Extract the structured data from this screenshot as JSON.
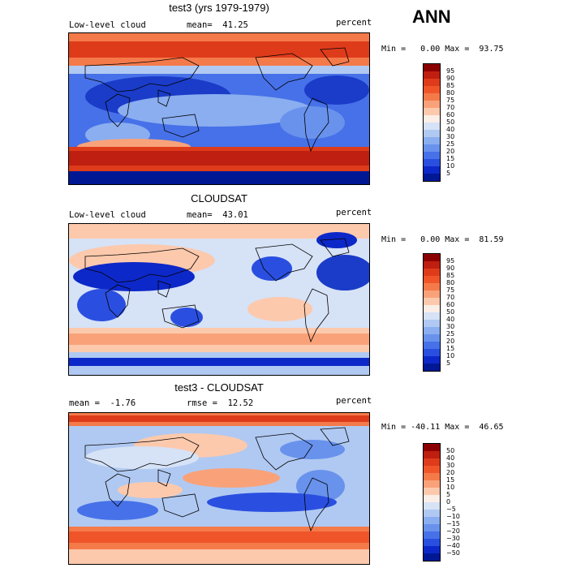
{
  "season": "ANN",
  "panels": [
    {
      "title": "test3 (yrs 1979-1979)",
      "left_label": "Low-level cloud",
      "stat_label": "mean=  41.25",
      "units": "percent",
      "minmax": "Min =   0.00 Max =  93.75",
      "levels": [
        "95",
        "90",
        "85",
        "80",
        "75",
        "70",
        "60",
        "50",
        "40",
        "30",
        "25",
        "20",
        "15",
        "10",
        "5"
      ],
      "colors": [
        "#8b0000",
        "#bf1f10",
        "#de3b1b",
        "#f0552a",
        "#f57a4a",
        "#f9a27a",
        "#fcc9ad",
        "#fbeee6",
        "#d6e2f6",
        "#b0c9f2",
        "#8aaef0",
        "#6892ec",
        "#4771e8",
        "#2a4fe0",
        "#0d28c8",
        "#001894"
      ]
    },
    {
      "title": "CLOUDSAT",
      "left_label": "Low-level cloud",
      "stat_label": "mean=  43.01",
      "units": "percent",
      "minmax": "Min =   0.00 Max =  81.59",
      "levels": [
        "95",
        "90",
        "85",
        "80",
        "75",
        "70",
        "60",
        "50",
        "40",
        "30",
        "25",
        "20",
        "15",
        "10",
        "5"
      ],
      "colors": [
        "#8b0000",
        "#bf1f10",
        "#de3b1b",
        "#f0552a",
        "#f57a4a",
        "#f9a27a",
        "#fcc9ad",
        "#fbeee6",
        "#d6e2f6",
        "#b0c9f2",
        "#8aaef0",
        "#6892ec",
        "#4771e8",
        "#2a4fe0",
        "#0d28c8",
        "#001894"
      ]
    },
    {
      "title": "test3 - CLOUDSAT",
      "left_label": "mean =  -1.76",
      "stat_label": "rmse =  12.52",
      "units": "percent",
      "minmax": "Min = -40.11 Max =  46.65",
      "levels": [
        "50",
        "40",
        "30",
        "20",
        "15",
        "10",
        "5",
        "0",
        "−5",
        "−10",
        "−15",
        "−20",
        "−30",
        "−40",
        "−50"
      ],
      "colors": [
        "#8b0000",
        "#bf1f10",
        "#de3b1b",
        "#f0552a",
        "#f57a4a",
        "#f9a27a",
        "#fcc9ad",
        "#fbeee6",
        "#d6e2f6",
        "#b0c9f2",
        "#8aaef0",
        "#6892ec",
        "#4771e8",
        "#2a4fe0",
        "#0d28c8",
        "#001894"
      ]
    }
  ]
}
